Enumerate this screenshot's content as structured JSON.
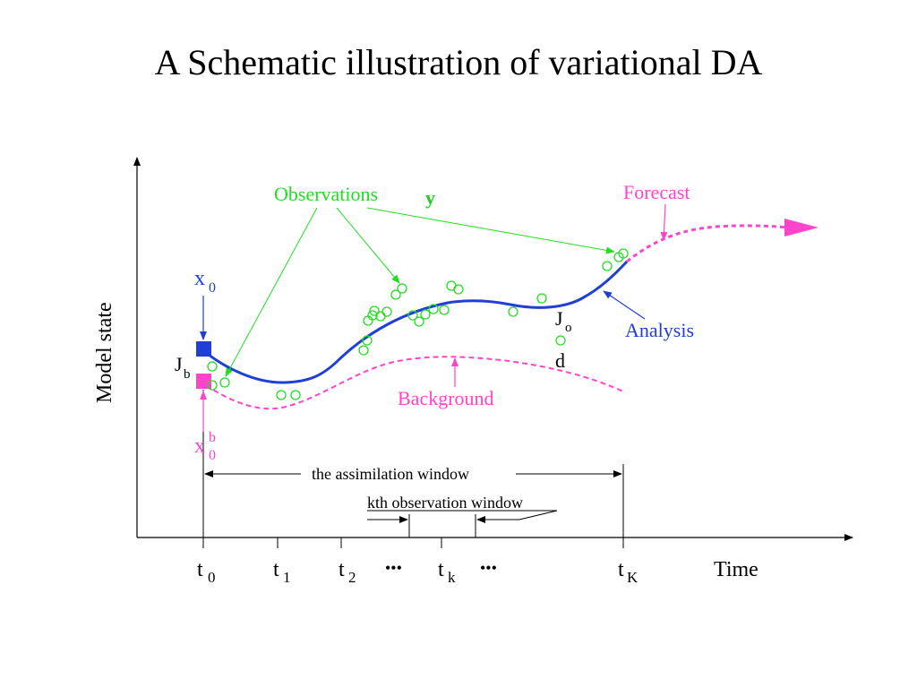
{
  "title": "A Schematic illustration of variational DA",
  "axes": {
    "ylabel": "Model state",
    "xlabel": "Time"
  },
  "time_ticks": [
    {
      "t": "t",
      "sub": "0"
    },
    {
      "t": "t",
      "sub": "1"
    },
    {
      "t": "t",
      "sub": "2"
    },
    {
      "t": "t",
      "sub": "k"
    },
    {
      "t": "t",
      "sub": "K"
    }
  ],
  "ellipsis": "•••",
  "labels": {
    "observations": "Observations",
    "observations_symbol": "y",
    "forecast": "Forecast",
    "analysis": "Analysis",
    "background": "Background",
    "x0": "x",
    "x0_sub": "0",
    "x0b": "x",
    "x0b_sub": "0",
    "x0b_sup": "b",
    "jb": "J",
    "jb_sub": "b",
    "jo": "J",
    "jo_sub": "o",
    "d": "d",
    "assimilation_window": "the assimilation window",
    "kth_window": "kth observation window"
  },
  "colors": {
    "analysis": "#1f3fd6",
    "background": "#ff44cc",
    "observations": "#22dd22",
    "axis": "#000000"
  }
}
